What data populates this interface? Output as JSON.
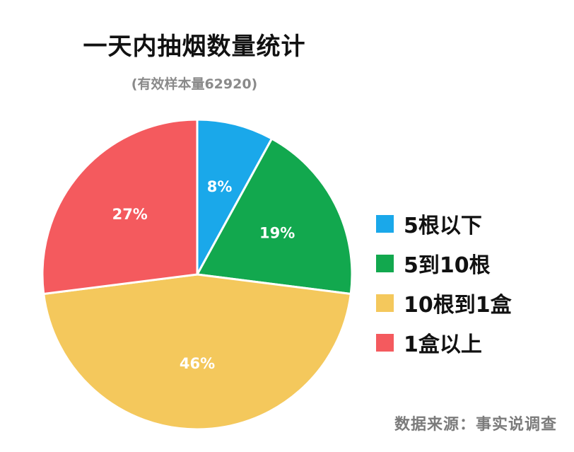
{
  "chart_data": {
    "type": "pie",
    "title": "一天内抽烟数量统计",
    "subtitle": "(有效样本量62920)",
    "source": "数据来源：事实说调查",
    "slices": [
      {
        "label": "5根以下",
        "value": 8,
        "display": "8%",
        "color": "#1aa8ea"
      },
      {
        "label": "5到10根",
        "value": 19,
        "display": "19%",
        "color": "#12a84e"
      },
      {
        "label": "10根到1盒",
        "value": 46,
        "display": "46%",
        "color": "#f4c85c"
      },
      {
        "label": "1盒以上",
        "value": 27,
        "display": "27%",
        "color": "#f45a5e"
      }
    ],
    "legend_position": "right"
  }
}
